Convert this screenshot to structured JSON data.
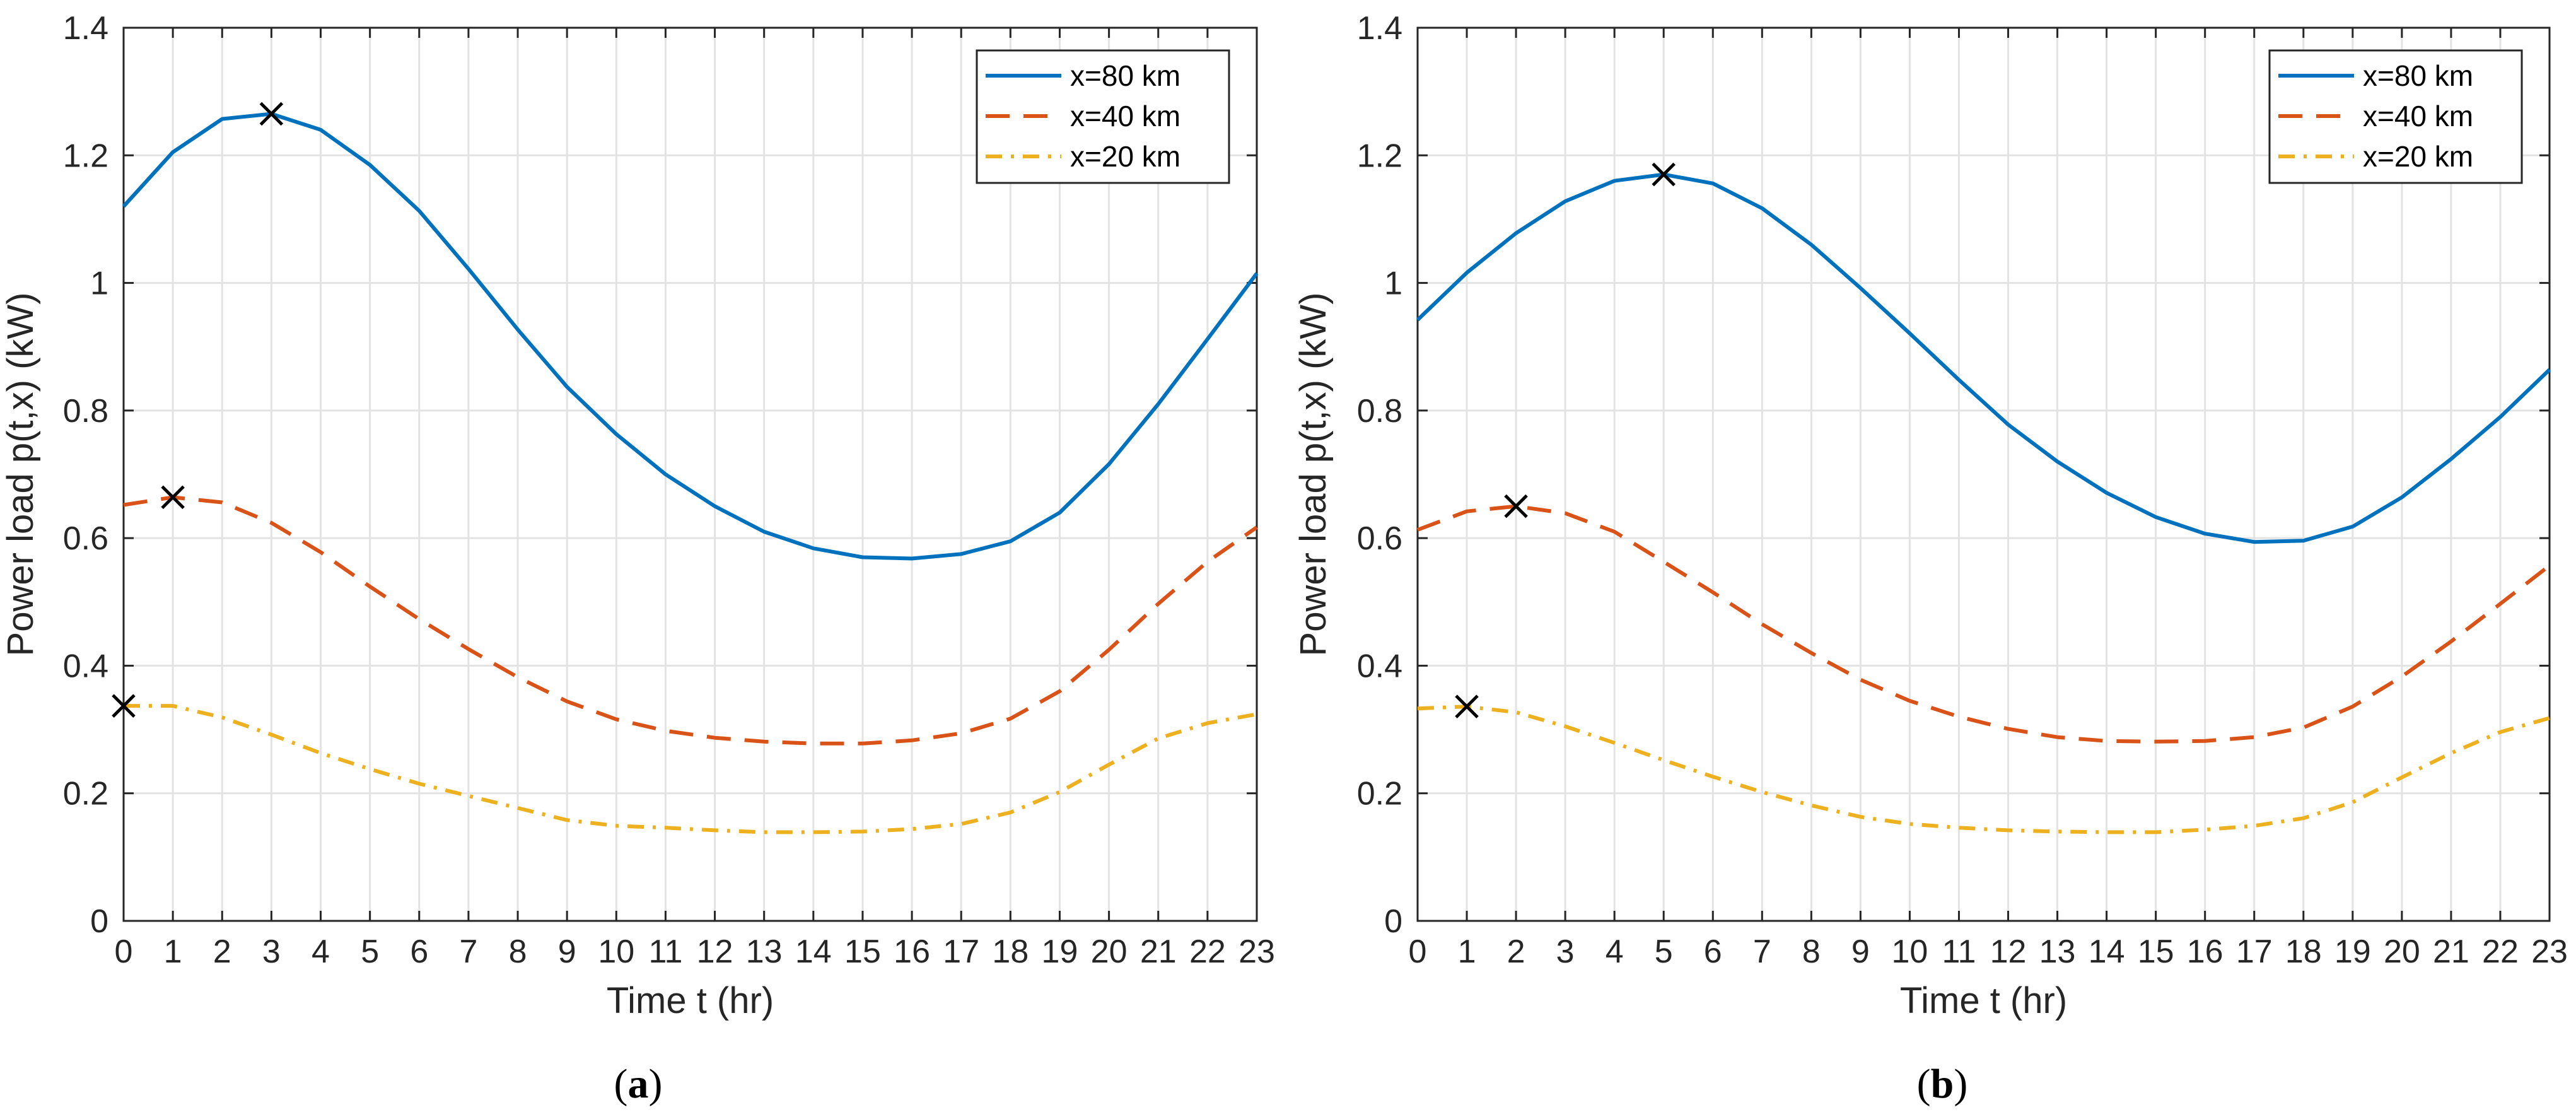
{
  "colors": {
    "series_80": "#0072BD",
    "series_40": "#D95319",
    "series_20": "#EDB120",
    "grid": "#e3e3e3",
    "axis": "#262626",
    "marker": "#000000"
  },
  "chart_data": [
    {
      "type": "line",
      "caption_open": "(",
      "caption_letter": "a",
      "caption_close": ")",
      "xlabel": "Time t (hr)",
      "ylabel": "Power load p(t,x) (kW)",
      "xlim": [
        0,
        23
      ],
      "ylim": [
        0,
        1.4
      ],
      "xticks": [
        "0",
        "1",
        "2",
        "3",
        "4",
        "5",
        "6",
        "7",
        "8",
        "9",
        "10",
        "11",
        "12",
        "13",
        "14",
        "15",
        "16",
        "17",
        "18",
        "19",
        "20",
        "21",
        "22",
        "23"
      ],
      "yticks": [
        "0",
        "0.2",
        "0.4",
        "0.6",
        "0.8",
        "1",
        "1.2",
        "1.4"
      ],
      "grid": true,
      "legend_position": "top-right",
      "x": [
        0,
        1,
        2,
        3,
        4,
        5,
        6,
        7,
        8,
        9,
        10,
        11,
        12,
        13,
        14,
        15,
        16,
        17,
        18,
        19,
        20,
        21,
        22,
        23
      ],
      "series": [
        {
          "name": "x=80 km",
          "style": "solid",
          "values": [
            1.12,
            1.205,
            1.257,
            1.265,
            1.24,
            1.185,
            1.113,
            1.022,
            0.927,
            0.837,
            0.763,
            0.7,
            0.65,
            0.61,
            0.584,
            0.57,
            0.568,
            0.575,
            0.595,
            0.64,
            0.716,
            0.81,
            0.912,
            1.015
          ]
        },
        {
          "name": "x=40 km",
          "style": "dashed",
          "values": [
            0.652,
            0.664,
            0.656,
            0.624,
            0.578,
            0.524,
            0.473,
            0.426,
            0.382,
            0.344,
            0.316,
            0.298,
            0.287,
            0.281,
            0.278,
            0.278,
            0.283,
            0.294,
            0.317,
            0.36,
            0.425,
            0.497,
            0.563,
            0.617
          ]
        },
        {
          "name": "x=20 km",
          "style": "dashdot",
          "values": [
            0.337,
            0.337,
            0.319,
            0.292,
            0.263,
            0.238,
            0.215,
            0.196,
            0.177,
            0.158,
            0.149,
            0.146,
            0.142,
            0.139,
            0.139,
            0.14,
            0.144,
            0.152,
            0.17,
            0.202,
            0.245,
            0.286,
            0.31,
            0.324
          ]
        }
      ],
      "peaks": [
        {
          "series": "x=80 km",
          "x": 3,
          "y": 1.265
        },
        {
          "series": "x=40 km",
          "x": 1,
          "y": 0.664
        },
        {
          "series": "x=20 km",
          "x": 0,
          "y": 0.337
        }
      ]
    },
    {
      "type": "line",
      "caption_open": "(",
      "caption_letter": "b",
      "caption_close": ")",
      "xlabel": "Time t (hr)",
      "ylabel": "Power load p(t,x) (kW)",
      "xlim": [
        0,
        23
      ],
      "ylim": [
        0,
        1.4
      ],
      "xticks": [
        "0",
        "1",
        "2",
        "3",
        "4",
        "5",
        "6",
        "7",
        "8",
        "9",
        "10",
        "11",
        "12",
        "13",
        "14",
        "15",
        "16",
        "17",
        "18",
        "19",
        "20",
        "21",
        "22",
        "23"
      ],
      "yticks": [
        "0",
        "0.2",
        "0.4",
        "0.6",
        "0.8",
        "1",
        "1.2",
        "1.4"
      ],
      "grid": true,
      "legend_position": "top-right",
      "x": [
        0,
        1,
        2,
        3,
        4,
        5,
        6,
        7,
        8,
        9,
        10,
        11,
        12,
        13,
        14,
        15,
        16,
        17,
        18,
        19,
        20,
        21,
        22,
        23
      ],
      "series": [
        {
          "name": "x=80 km",
          "style": "solid",
          "values": [
            0.942,
            1.016,
            1.078,
            1.128,
            1.16,
            1.17,
            1.156,
            1.117,
            1.06,
            0.992,
            0.921,
            0.848,
            0.778,
            0.72,
            0.671,
            0.633,
            0.607,
            0.594,
            0.596,
            0.618,
            0.664,
            0.724,
            0.79,
            0.864
          ]
        },
        {
          "name": "x=40 km",
          "style": "dashed",
          "values": [
            0.613,
            0.642,
            0.65,
            0.639,
            0.61,
            0.563,
            0.515,
            0.465,
            0.42,
            0.378,
            0.345,
            0.32,
            0.301,
            0.288,
            0.282,
            0.281,
            0.282,
            0.288,
            0.303,
            0.336,
            0.383,
            0.438,
            0.497,
            0.557
          ]
        },
        {
          "name": "x=20 km",
          "style": "dashdot",
          "values": [
            0.333,
            0.336,
            0.327,
            0.305,
            0.279,
            0.252,
            0.226,
            0.202,
            0.181,
            0.163,
            0.152,
            0.146,
            0.142,
            0.14,
            0.139,
            0.139,
            0.143,
            0.149,
            0.161,
            0.186,
            0.225,
            0.263,
            0.296,
            0.318
          ]
        }
      ],
      "peaks": [
        {
          "series": "x=80 km",
          "x": 5,
          "y": 1.17
        },
        {
          "series": "x=40 km",
          "x": 2,
          "y": 0.65
        },
        {
          "series": "x=20 km",
          "x": 1,
          "y": 0.336
        }
      ]
    }
  ]
}
